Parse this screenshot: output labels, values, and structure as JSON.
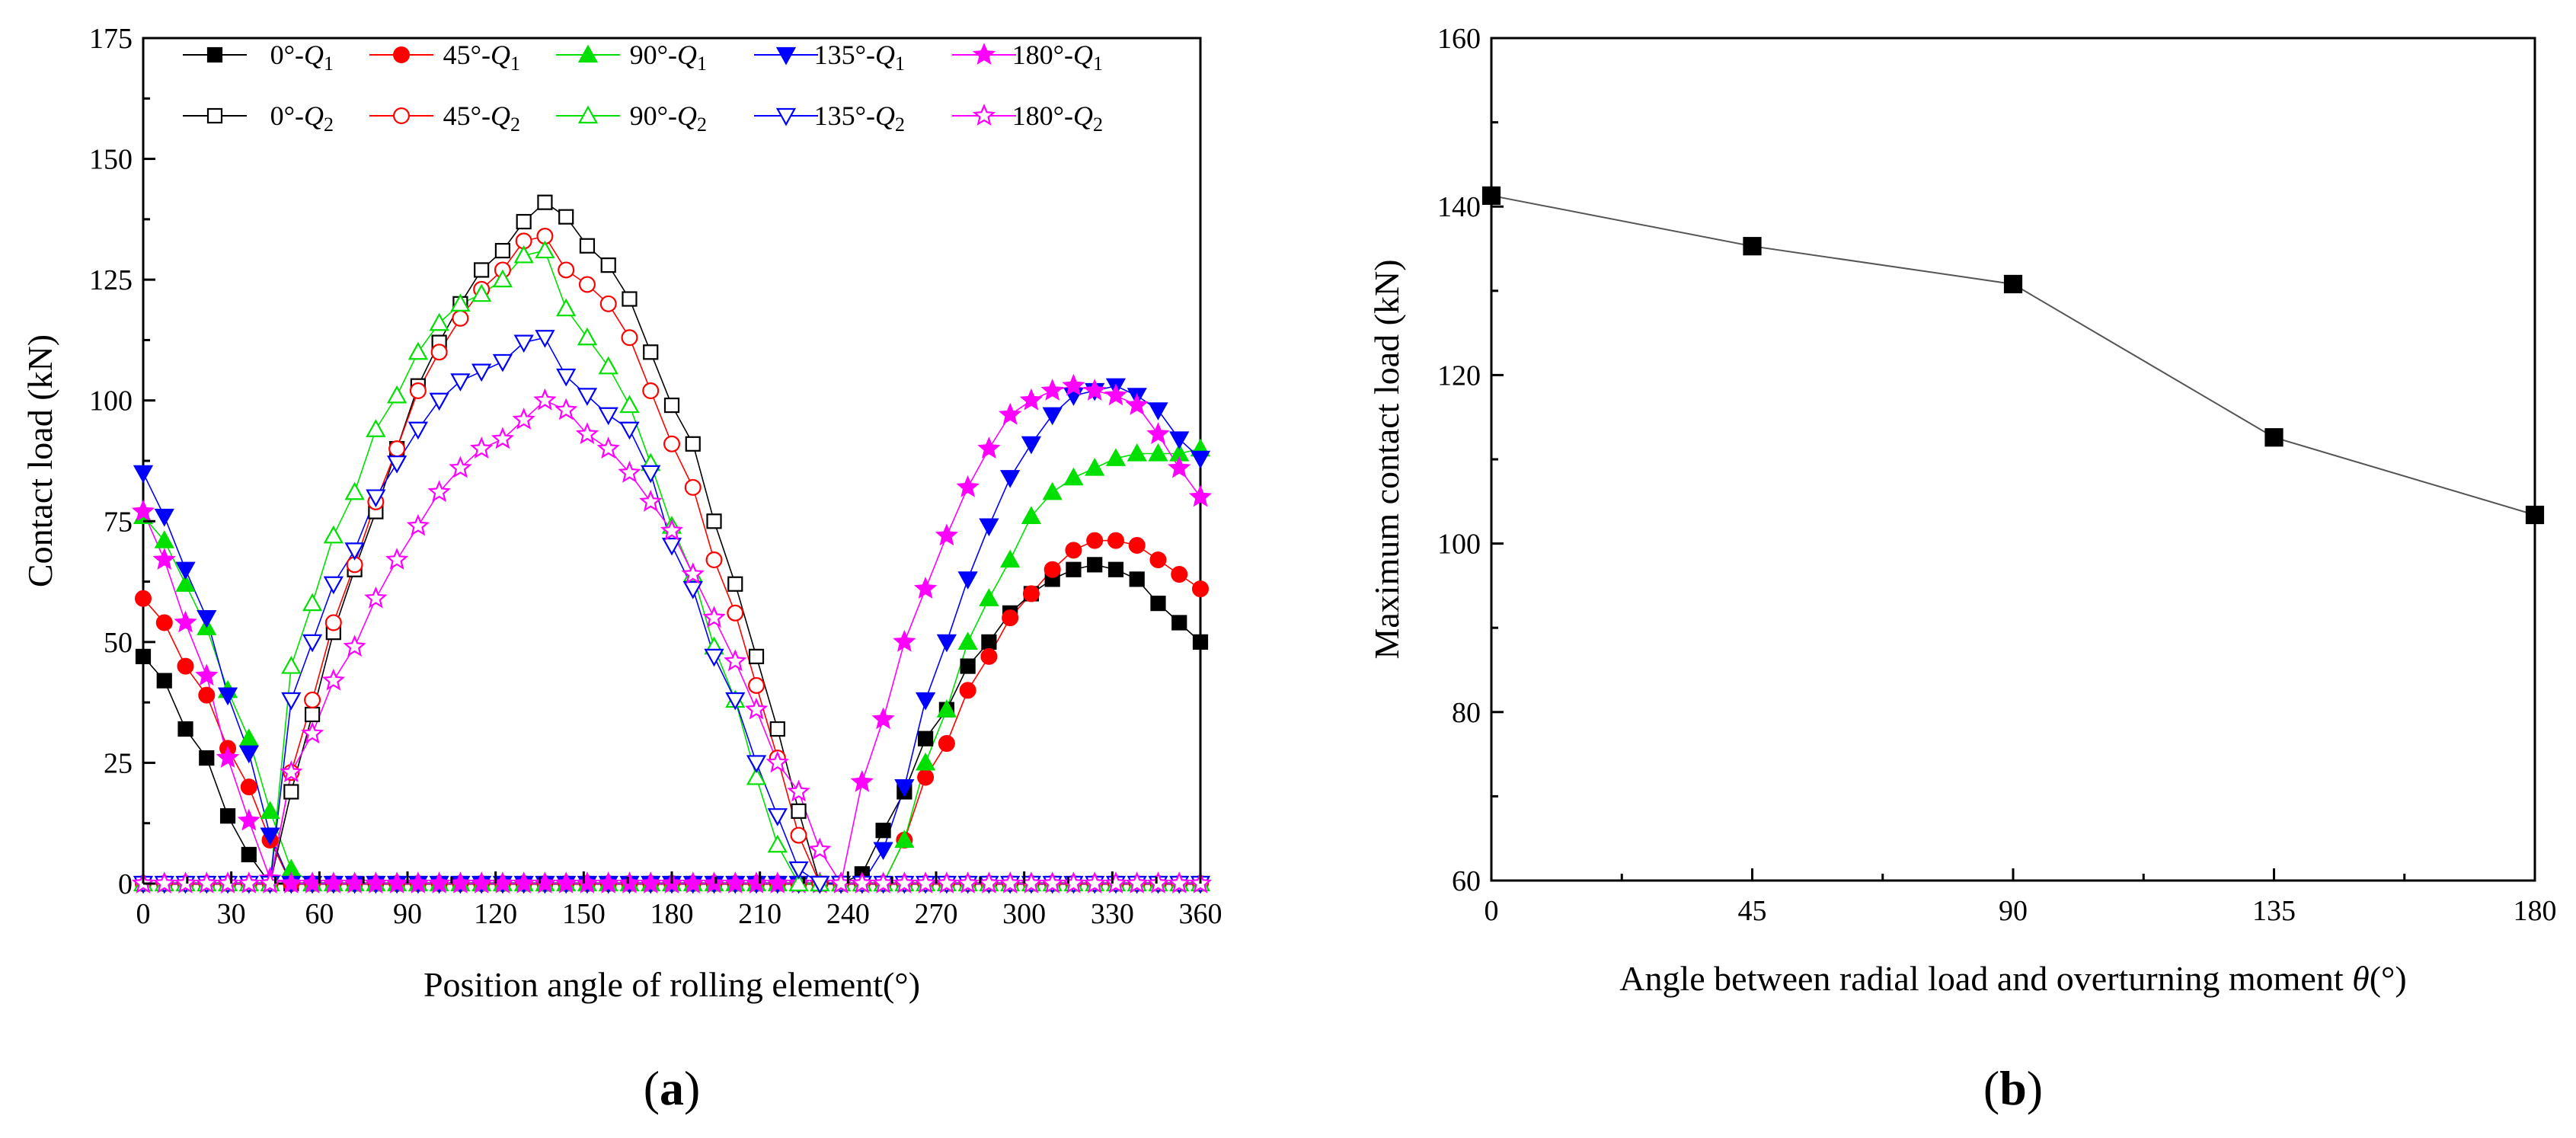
{
  "chart_data": [
    {
      "type": "line",
      "title": "",
      "panel_label": {
        "open": "(",
        "letter": "a",
        "close": ")"
      },
      "xlabel": "Position angle of rolling element(°)",
      "ylabel": "Contact load (kN)",
      "xlim": [
        0,
        360
      ],
      "ylim": [
        0,
        175
      ],
      "xticks": [
        0,
        30,
        60,
        90,
        120,
        150,
        180,
        210,
        240,
        270,
        300,
        330,
        360
      ],
      "yticks": [
        0,
        25,
        50,
        75,
        100,
        125,
        150,
        175
      ],
      "grid": false,
      "legend_position": "top",
      "x": [
        0,
        7.2,
        14.4,
        21.6,
        28.8,
        36,
        43.2,
        50.4,
        57.6,
        64.8,
        72,
        79.2,
        86.4,
        93.6,
        100.8,
        108,
        115.2,
        122.4,
        129.6,
        136.8,
        144,
        151.2,
        158.4,
        165.6,
        172.8,
        180,
        187.2,
        194.4,
        201.6,
        208.8,
        216,
        223.2,
        230.4,
        237.6,
        244.8,
        252,
        259.2,
        266.4,
        273.6,
        280.8,
        288,
        295.2,
        302.4,
        309.6,
        316.8,
        324,
        331.2,
        338.4,
        345.6,
        352.8,
        360
      ],
      "series": [
        {
          "name": "0°-Q1",
          "angle": "0°",
          "sub": "1",
          "color": "#000000",
          "marker": "square",
          "filled": true,
          "values": [
            47,
            42,
            32,
            26,
            14,
            6,
            0,
            0,
            0,
            0,
            0,
            0,
            0,
            0,
            0,
            0,
            0,
            0,
            0,
            0,
            0,
            0,
            0,
            0,
            0,
            0,
            0,
            0,
            0,
            0,
            0,
            0,
            0,
            0,
            2,
            11,
            19,
            30,
            36,
            45,
            50,
            56,
            60,
            63,
            65,
            66,
            65,
            63,
            58,
            54,
            50
          ]
        },
        {
          "name": "45°-Q1",
          "angle": "45°",
          "sub": "1",
          "color": "#ff0000",
          "marker": "circle",
          "filled": true,
          "values": [
            59,
            54,
            45,
            39,
            28,
            20,
            9,
            0,
            0,
            0,
            0,
            0,
            0,
            0,
            0,
            0,
            0,
            0,
            0,
            0,
            0,
            0,
            0,
            0,
            0,
            0,
            0,
            0,
            0,
            0,
            0,
            0,
            0,
            0,
            0,
            0,
            9,
            22,
            29,
            40,
            47,
            55,
            60,
            65,
            69,
            71,
            71,
            70,
            67,
            64,
            61
          ]
        },
        {
          "name": "90°-Q1",
          "angle": "90°",
          "sub": "1",
          "color": "#00e000",
          "marker": "triangle-up",
          "filled": true,
          "values": [
            76,
            71,
            62,
            53,
            40,
            30,
            15,
            3,
            0,
            0,
            0,
            0,
            0,
            0,
            0,
            0,
            0,
            0,
            0,
            0,
            0,
            0,
            0,
            0,
            0,
            0,
            0,
            0,
            0,
            0,
            0,
            0,
            0,
            0,
            0,
            0,
            9,
            25,
            36,
            50,
            59,
            67,
            76,
            81,
            84,
            86,
            88,
            89,
            89,
            89,
            90
          ]
        },
        {
          "name": "135°-Q1",
          "angle": "135°",
          "sub": "1",
          "color": "#0000ff",
          "marker": "triangle-down",
          "filled": true,
          "values": [
            85,
            76,
            65,
            55,
            39,
            27,
            10,
            0,
            0,
            0,
            0,
            0,
            0,
            0,
            0,
            0,
            0,
            0,
            0,
            0,
            0,
            0,
            0,
            0,
            0,
            0,
            0,
            0,
            0,
            0,
            0,
            0,
            0,
            0,
            0,
            7,
            20,
            38,
            50,
            63,
            74,
            84,
            91,
            97,
            101,
            102,
            103,
            101,
            98,
            92,
            88
          ]
        },
        {
          "name": "180°-Q1",
          "angle": "180°",
          "sub": "1",
          "color": "#ff00ff",
          "marker": "star",
          "filled": true,
          "values": [
            77,
            67,
            54,
            43,
            26,
            13,
            1,
            0,
            0,
            0,
            0,
            0,
            0,
            0,
            0,
            0,
            0,
            0,
            0,
            0,
            0,
            0,
            0,
            0,
            0,
            0,
            0,
            0,
            0,
            0,
            0,
            0,
            0,
            0,
            21,
            34,
            50,
            61,
            72,
            82,
            90,
            97,
            100,
            102,
            103,
            102,
            101,
            99,
            93,
            86,
            80
          ]
        },
        {
          "name": "0°-Q2",
          "angle": "0°",
          "sub": "2",
          "color": "#000000",
          "marker": "square",
          "filled": false,
          "values": [
            0,
            0,
            0,
            0,
            0,
            0,
            0,
            19,
            35,
            52,
            65,
            77,
            90,
            103,
            112,
            120,
            127,
            131,
            137,
            141,
            138,
            132,
            128,
            121,
            110,
            99,
            91,
            75,
            62,
            47,
            32,
            15,
            0,
            0,
            0,
            0,
            0,
            0,
            0,
            0,
            0,
            0,
            0,
            0,
            0,
            0,
            0,
            0,
            0,
            0,
            0
          ]
        },
        {
          "name": "45°-Q2",
          "angle": "45°",
          "sub": "2",
          "color": "#ff0000",
          "marker": "circle",
          "filled": false,
          "values": [
            0,
            0,
            0,
            0,
            0,
            0,
            0,
            23,
            38,
            54,
            66,
            79,
            90,
            102,
            110,
            117,
            123,
            127,
            133,
            134,
            127,
            124,
            120,
            113,
            102,
            91,
            82,
            67,
            56,
            41,
            26,
            10,
            0,
            0,
            0,
            0,
            0,
            0,
            0,
            0,
            0,
            0,
            0,
            0,
            0,
            0,
            0,
            0,
            0,
            0,
            0
          ]
        },
        {
          "name": "90°-Q2",
          "angle": "90°",
          "sub": "2",
          "color": "#00e000",
          "marker": "triangle-up",
          "filled": false,
          "values": [
            0,
            0,
            0,
            0,
            0,
            0,
            0,
            45,
            58,
            72,
            81,
            94,
            101,
            110,
            116,
            120,
            122,
            125,
            130,
            131,
            119,
            113,
            107,
            99,
            87,
            74,
            64,
            49,
            38,
            22,
            8,
            0,
            0,
            0,
            0,
            0,
            0,
            0,
            0,
            0,
            0,
            0,
            0,
            0,
            0,
            0,
            0,
            0,
            0,
            0,
            0
          ]
        },
        {
          "name": "135°-Q2",
          "angle": "135°",
          "sub": "2",
          "color": "#0000ff",
          "marker": "triangle-down",
          "filled": false,
          "values": [
            0,
            0,
            0,
            0,
            0,
            0,
            0,
            38,
            50,
            62,
            69,
            80,
            87,
            94,
            100,
            104,
            106,
            108,
            112,
            113,
            105,
            101,
            97,
            94,
            85,
            70,
            61,
            47,
            38,
            25,
            14,
            3,
            0,
            0,
            0,
            0,
            0,
            0,
            0,
            0,
            0,
            0,
            0,
            0,
            0,
            0,
            0,
            0,
            0,
            0,
            0
          ]
        },
        {
          "name": "180°-Q2",
          "angle": "180°",
          "sub": "2",
          "color": "#ff00ff",
          "marker": "star",
          "filled": false,
          "values": [
            0,
            0,
            0,
            0,
            0,
            0,
            0,
            23,
            31,
            42,
            49,
            59,
            67,
            74,
            81,
            86,
            90,
            92,
            96,
            100,
            98,
            93,
            90,
            85,
            79,
            73,
            64,
            55,
            46,
            36,
            25,
            19,
            7,
            0,
            0,
            0,
            0,
            0,
            0,
            0,
            0,
            0,
            0,
            0,
            0,
            0,
            0,
            0,
            0,
            0,
            0
          ]
        }
      ]
    },
    {
      "type": "line",
      "title": "",
      "panel_label": {
        "open": "(",
        "letter": "b",
        "close": ")"
      },
      "xlabel_main": "Angle between radial load and overturning moment ",
      "xlabel_symbol": "θ",
      "xlabel_unit": "(°)",
      "ylabel": "Maximum contact load (kN)",
      "xlim": [
        0,
        180
      ],
      "ylim": [
        60,
        160
      ],
      "xticks": [
        0,
        45,
        90,
        135,
        180
      ],
      "yticks": [
        60,
        80,
        100,
        120,
        140,
        160
      ],
      "grid": false,
      "x": [
        0,
        45,
        90,
        135,
        180
      ],
      "values": [
        141.3,
        135.3,
        130.8,
        112.6,
        103.4
      ],
      "color": "#000000",
      "line_color": "#555555",
      "marker": "square"
    }
  ]
}
